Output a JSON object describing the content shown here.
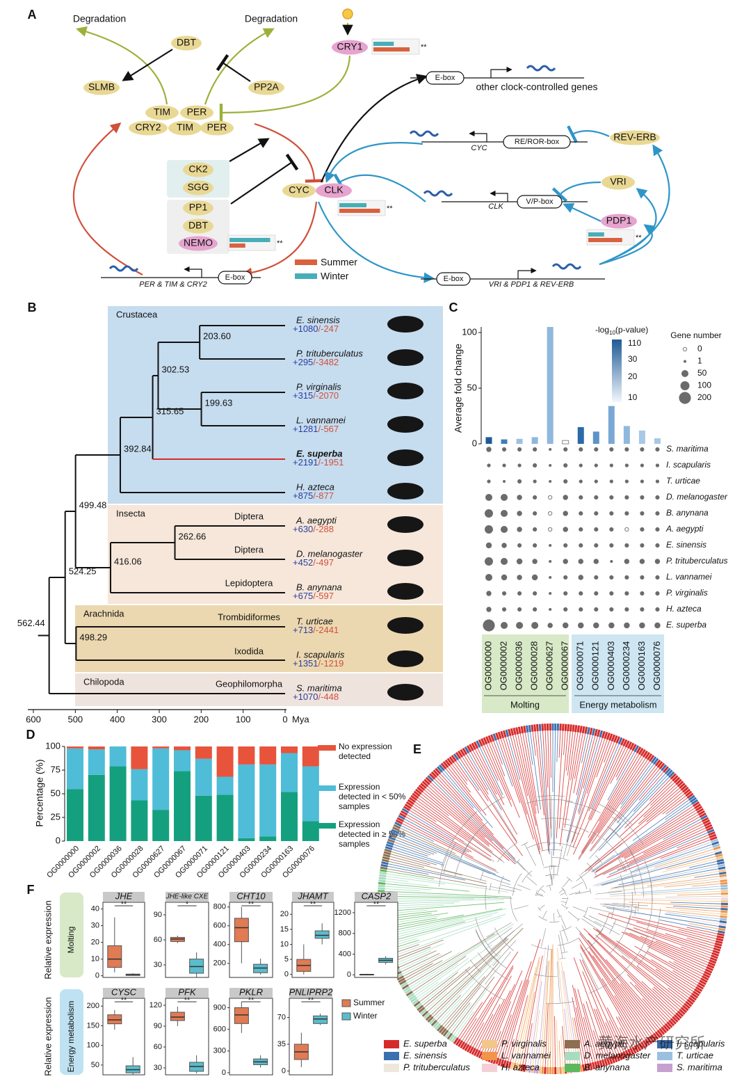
{
  "panel_labels": [
    "A",
    "B",
    "C",
    "D",
    "E",
    "F"
  ],
  "panel_a": {
    "texts": [
      "Degradation",
      "Degradation",
      "DBT",
      "SLMB",
      "PP2A",
      "CRY1",
      "TIM",
      "PER",
      "CRY2",
      "TIM",
      "PER",
      "E-box",
      "other clock-controlled genes",
      "CYC",
      "RE/ROR-box",
      "REV-ERB",
      "CK2",
      "SGG",
      "PP1",
      "DBT",
      "NEMO",
      "CYC",
      "CLK",
      "VRI",
      "CLK",
      "V/P-box",
      "PDP1",
      "PER & TIM & CRY2",
      "E-box",
      "E-box",
      "VRI & PDP1 & REV-ERB"
    ],
    "legend": [
      {
        "name": "Summer",
        "color": "#d9613d"
      },
      {
        "name": "Winter",
        "color": "#47aeb8"
      }
    ],
    "expression": [
      {
        "winter": 0.45,
        "summer": 0.8,
        "significance": "**"
      },
      {
        "winter": 0.6,
        "summer": 0.9,
        "significance": "**"
      },
      {
        "winter": 0.9,
        "summer": 0.35,
        "significance": "**"
      },
      {
        "winter": 0.35,
        "summer": 0.75,
        "significance": "**"
      }
    ]
  },
  "panel_b": {
    "clades": [
      "Crustacea",
      "Insecta",
      "Arachnida",
      "Chilopoda"
    ],
    "orders": [
      "Diptera",
      "Diptera",
      "Lepidoptera",
      "Trombidiformes",
      "Ixodida",
      "Geophilomorpha"
    ],
    "species": [
      {
        "name": "E. sinensis",
        "gain": "+1080",
        "loss": "/-247"
      },
      {
        "name": "P. trituberculatus",
        "gain": "+295",
        "loss": "/-3482"
      },
      {
        "name": "P. virginalis",
        "gain": "+315",
        "loss": "/-2070"
      },
      {
        "name": "L. vannamei",
        "gain": "+1281",
        "loss": "/-567"
      },
      {
        "name": "E. superba",
        "gain": "+2191",
        "loss": "/-1951"
      },
      {
        "name": "H. azteca",
        "gain": "+875",
        "loss": "/-877"
      },
      {
        "name": "A. aegypti",
        "gain": "+630",
        "loss": "/-288"
      },
      {
        "name": "D. melanogaster",
        "gain": "+452",
        "loss": "/-497"
      },
      {
        "name": "B. anynana",
        "gain": "+675",
        "loss": "/-597"
      },
      {
        "name": "T. urticae",
        "gain": "+713",
        "loss": "/-2441"
      },
      {
        "name": "I. scapularis",
        "gain": "+1351",
        "loss": "/-1219"
      },
      {
        "name": "S. maritima",
        "gain": "+1070",
        "loss": "/-448"
      }
    ],
    "node_ages": [
      {
        "value": 203.6,
        "label": "203.60"
      },
      {
        "value": 302.53,
        "label": "302.53"
      },
      {
        "value": 199.63,
        "label": "199.63"
      },
      {
        "value": 315.65,
        "label": "315.65"
      },
      {
        "value": 392.84,
        "label": "392.84"
      },
      {
        "value": 499.48,
        "label": "499.48"
      },
      {
        "value": 262.66,
        "label": "262.66"
      },
      {
        "value": 416.06,
        "label": "416.06"
      },
      {
        "value": 524.25,
        "label": "524.25"
      },
      {
        "value": 498.29,
        "label": "498.29"
      },
      {
        "value": 562.44,
        "label": "562.44"
      }
    ],
    "xlim": [
      600,
      0
    ],
    "xticks": [
      600,
      500,
      400,
      300,
      200,
      100,
      0
    ],
    "xlabel": "Mya"
  },
  "panel_c": {
    "type": "bar",
    "ylabel": "Average fold change",
    "ylim": [
      0,
      105
    ],
    "yticks": [
      0,
      50,
      100
    ],
    "categories": [
      "OG0000000",
      "OG0000002",
      "OG0000036",
      "OG0000028",
      "OG0000627",
      "OG0000067",
      "OG0000071",
      "OG0000121",
      "OG0000403",
      "OG0000234",
      "OG0000163",
      "OG0000076"
    ],
    "values": [
      6,
      4,
      4.5,
      6,
      105,
      3,
      15,
      11,
      34,
      16,
      12,
      5
    ],
    "colors": [
      "#1f5a96",
      "#3f7fb8",
      "#9cc0e0",
      "#8fb8dc",
      "#8fb8dc",
      "#ffffff",
      "#2a6aa8",
      "#5d93c6",
      "#7aa8d4",
      "#8fb8dc",
      "#a7c8e6",
      "#a7c8e6"
    ],
    "colorbar_title": {
      "prefix": "-log",
      "sub": "10",
      "suffix": "(p-value)"
    },
    "colorbar_ticks": [
      110,
      30,
      20,
      10
    ],
    "size_title": "Gene number",
    "size_ticks": [
      0,
      1,
      50,
      100,
      200
    ],
    "species": [
      "S. maritima",
      "I. scapularis",
      "T. urticae",
      "D. melanogaster",
      "B. anynana",
      "A. aegypti",
      "E. sinensis",
      "P. trituberculatus",
      "L. vannamei",
      "P. virginalis",
      "H. azteca",
      "E. superba"
    ],
    "gene_numbers": [
      [
        20,
        10,
        10,
        10,
        1,
        10,
        10,
        10,
        10,
        10,
        10,
        10
      ],
      [
        5,
        5,
        5,
        10,
        1,
        10,
        5,
        5,
        5,
        5,
        5,
        5
      ],
      [
        5,
        1,
        10,
        5,
        1,
        10,
        5,
        5,
        5,
        5,
        5,
        5
      ],
      [
        50,
        50,
        20,
        10,
        0,
        20,
        10,
        10,
        10,
        10,
        10,
        10
      ],
      [
        80,
        50,
        20,
        10,
        0,
        20,
        10,
        10,
        10,
        10,
        10,
        10
      ],
      [
        80,
        50,
        20,
        10,
        0,
        20,
        10,
        10,
        10,
        0,
        10,
        10
      ],
      [
        30,
        20,
        10,
        10,
        1,
        10,
        10,
        10,
        10,
        10,
        10,
        10
      ],
      [
        80,
        50,
        30,
        20,
        1,
        20,
        20,
        20,
        1,
        20,
        20,
        20
      ],
      [
        50,
        30,
        20,
        30,
        1,
        10,
        20,
        10,
        10,
        10,
        10,
        10
      ],
      [
        20,
        10,
        10,
        10,
        1,
        10,
        10,
        10,
        10,
        10,
        10,
        10
      ],
      [
        20,
        10,
        10,
        10,
        1,
        10,
        10,
        10,
        10,
        10,
        10,
        10
      ],
      [
        200,
        50,
        50,
        50,
        20,
        30,
        30,
        30,
        30,
        30,
        30,
        30
      ]
    ],
    "groups": [
      "Molting",
      "Energy metabolism"
    ]
  },
  "panel_d": {
    "type": "bar",
    "ylabel": "Percentage (%)",
    "ylim": [
      0,
      100
    ],
    "yticks": [
      0,
      25,
      50,
      75,
      100
    ],
    "categories": [
      "OG0000000",
      "OG0000002",
      "OG0000036",
      "OG0000028",
      "OG0000627",
      "OG0000067",
      "OG0000071",
      "OG0000121",
      "OG0000403",
      "OG0000234",
      "OG0000163",
      "OG0000076"
    ],
    "series": [
      {
        "name": "Expression detected in ≥ 50% samples",
        "color": "#14a07e",
        "values": [
          55,
          70,
          79,
          43,
          33,
          74,
          48,
          49,
          3,
          5,
          52,
          21
        ]
      },
      {
        "name": "Expression detected in < 50% samples",
        "color": "#4fbcd8",
        "values": [
          43,
          27,
          21,
          33,
          65,
          22,
          39,
          19,
          78,
          76,
          41,
          58
        ]
      },
      {
        "name": "No expression detected",
        "color": "#e8533c",
        "values": [
          2,
          3,
          0,
          24,
          2,
          4,
          13,
          32,
          19,
          19,
          7,
          21
        ]
      }
    ]
  },
  "panel_e": {
    "legend": [
      {
        "name": "E. superba",
        "color": "#d62a2a"
      },
      {
        "name": "E. sinensis",
        "color": "#3a6fb0"
      },
      {
        "name": "P. trituberculatus",
        "color": "#eee8dc"
      },
      {
        "name": "P. virginalis",
        "color": "#f3c78a"
      },
      {
        "name": "L. vannamei",
        "color": "#f0954a"
      },
      {
        "name": "H. azteca",
        "color": "#f4cfd6"
      },
      {
        "name": "A. aegypti",
        "color": "#8c6e50"
      },
      {
        "name": "D. melanogaster",
        "color": "#a8dcc0"
      },
      {
        "name": "B. anynana",
        "color": "#5cb85c"
      },
      {
        "name": "I. scapularis",
        "color": "#3b6aa8"
      },
      {
        "name": "T. urticae",
        "color": "#9bbfe0"
      },
      {
        "name": "S. maritima",
        "color": "#c5a0d0"
      }
    ],
    "watermark": "黄海水产研究所"
  },
  "panel_f": {
    "groups": [
      "Molting",
      "Energy metabolism"
    ],
    "ylabel": "Relative expression",
    "legend": [
      {
        "name": "Summer",
        "color": "#e07b54"
      },
      {
        "name": "Winter",
        "color": "#5bbccc"
      }
    ],
    "plots": [
      {
        "gene": "JHE",
        "ylim": [
          -1,
          44
        ],
        "yticks": [
          0,
          10,
          20,
          30,
          40
        ],
        "significance": "**",
        "summer": {
          "lo": 2,
          "q1": 5,
          "median": 10,
          "q3": 18,
          "hi": 35
        },
        "winter": {
          "lo": 0,
          "q1": 0.2,
          "median": 0.5,
          "q3": 1,
          "hi": 1.5
        }
      },
      {
        "gene": "JHE-like CXE",
        "ylim": [
          15,
          105
        ],
        "yticks": [
          30,
          60,
          90
        ],
        "significance": "*",
        "summer": {
          "lo": 56,
          "q1": 58,
          "median": 61,
          "q3": 63,
          "hi": 65
        },
        "winter": {
          "lo": 15,
          "q1": 20,
          "median": 28,
          "q3": 37,
          "hi": 45
        }
      },
      {
        "gene": "CHT10",
        "ylim": [
          50,
          850
        ],
        "yticks": [
          200,
          400,
          600,
          800
        ],
        "significance": "**",
        "summer": {
          "lo": 200,
          "q1": 430,
          "median": 580,
          "q3": 680,
          "hi": 800
        },
        "winter": {
          "lo": 80,
          "q1": 100,
          "median": 150,
          "q3": 190,
          "hi": 250
        }
      },
      {
        "gene": "JHAMT",
        "ylim": [
          -1,
          24
        ],
        "yticks": [
          0,
          5,
          10,
          15,
          20
        ],
        "significance": "**",
        "summer": {
          "lo": 0,
          "q1": 1,
          "median": 3,
          "q3": 5,
          "hi": 10
        },
        "winter": {
          "lo": 10,
          "q1": 12,
          "median": 13,
          "q3": 14.5,
          "hi": 17
        }
      },
      {
        "gene": "CASP2",
        "ylim": [
          -50,
          1400
        ],
        "yticks": [
          0,
          400,
          800,
          1200
        ],
        "significance": "**",
        "summer": {
          "lo": 0,
          "q1": 0,
          "median": 5,
          "q3": 10,
          "hi": 20
        },
        "winter": {
          "lo": 200,
          "q1": 240,
          "median": 280,
          "q3": 320,
          "hi": 360
        }
      },
      {
        "gene": "CYSC",
        "ylim": [
          25,
          220
        ],
        "yticks": [
          50,
          100,
          150,
          200
        ],
        "significance": "**",
        "summer": {
          "lo": 140,
          "q1": 155,
          "median": 165,
          "q3": 178,
          "hi": 190
        },
        "winter": {
          "lo": 25,
          "q1": 30,
          "median": 38,
          "q3": 48,
          "hi": 70
        }
      },
      {
        "gene": "PFK",
        "ylim": [
          20,
          130
        ],
        "yticks": [
          30,
          60,
          90,
          120
        ],
        "significance": "**",
        "summer": {
          "lo": 90,
          "q1": 98,
          "median": 103,
          "q3": 110,
          "hi": 118
        },
        "winter": {
          "lo": 22,
          "q1": 25,
          "median": 32,
          "q3": 38,
          "hi": 48
        }
      },
      {
        "gene": "PKLR",
        "ylim": [
          -30,
          1030
        ],
        "yticks": [
          0,
          300,
          600,
          900
        ],
        "significance": "**",
        "summer": {
          "lo": 550,
          "q1": 680,
          "median": 800,
          "q3": 900,
          "hi": 980
        },
        "winter": {
          "lo": 70,
          "q1": 110,
          "median": 150,
          "q3": 190,
          "hi": 240
        }
      },
      {
        "gene": "PNLIPRP2",
        "ylim": [
          -5,
          95
        ],
        "yticks": [
          0,
          35,
          70
        ],
        "significance": "**",
        "summer": {
          "lo": 5,
          "q1": 15,
          "median": 25,
          "q3": 35,
          "hi": 50
        },
        "winter": {
          "lo": 60,
          "q1": 62,
          "median": 68,
          "q3": 72,
          "hi": 75
        }
      }
    ]
  }
}
